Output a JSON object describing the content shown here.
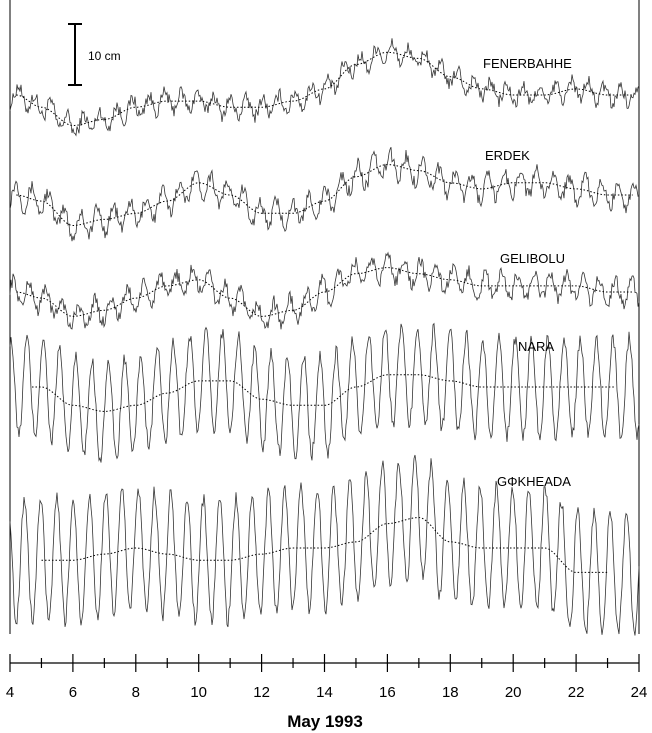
{
  "chart_data": {
    "type": "line",
    "xlabel": "May 1993",
    "xlim": [
      4,
      24
    ],
    "x_ticks": [
      "4",
      "6",
      "8",
      "10",
      "12",
      "14",
      "16",
      "18",
      "20",
      "22",
      "24"
    ],
    "scale_bar_label": "10 cm",
    "scale_bar_cm": 10,
    "series": [
      {
        "name": "FENERBAHHE",
        "x": [
          4.2,
          5,
          6,
          7,
          8,
          9,
          10,
          11,
          12,
          13,
          14,
          15,
          16,
          17,
          18,
          19,
          20,
          21,
          22,
          23,
          23.8
        ],
        "smooth_cm": [
          0,
          -2,
          -5,
          -4,
          -2,
          -1,
          -1,
          -2,
          -2,
          -1,
          1,
          5,
          7,
          6,
          3,
          1,
          0,
          0,
          1,
          0,
          0
        ],
        "tidal_amp_cm": 1.5
      },
      {
        "name": "ERDEK",
        "x": [
          4.2,
          5,
          6,
          7,
          8,
          9,
          10,
          11,
          12,
          13,
          14,
          15,
          16,
          17,
          18,
          19,
          20,
          21,
          22,
          23,
          23.8
        ],
        "smooth_cm": [
          0,
          -1,
          -5,
          -4,
          -3,
          -1,
          2,
          0,
          -3,
          -3,
          -1,
          3,
          5,
          4,
          2,
          1,
          2,
          2,
          1,
          0,
          0
        ],
        "tidal_amp_cm": 2
      },
      {
        "name": "GELIBOLU",
        "x": [
          4.2,
          5,
          6,
          7,
          8,
          9,
          10,
          11,
          12,
          13,
          14,
          15,
          16,
          17,
          18,
          19,
          20,
          21,
          22,
          23,
          23.8
        ],
        "smooth_cm": [
          0,
          -1,
          -4,
          -3,
          -1,
          1,
          2,
          -1,
          -4,
          -3,
          0,
          3,
          4,
          3,
          2,
          1,
          1,
          1,
          1,
          0,
          0
        ],
        "tidal_amp_cm": 2
      },
      {
        "name": "NARA",
        "x": [
          4.7,
          5,
          6,
          7,
          8,
          9,
          10,
          11,
          12,
          13,
          14,
          15,
          16,
          17,
          18,
          19,
          20,
          21,
          22,
          23,
          23.2
        ],
        "smooth_cm": [
          0,
          0,
          -3,
          -4,
          -3,
          -1,
          1,
          1,
          -2,
          -3,
          -3,
          0,
          2,
          2,
          1,
          0,
          0,
          0,
          0,
          0,
          0
        ],
        "tidal_amp_cm": 8
      },
      {
        "name": "GΦKHEADA",
        "x": [
          5,
          6,
          7,
          8,
          9,
          10,
          11,
          12,
          13,
          14,
          15,
          16,
          17,
          18,
          19,
          20,
          21,
          22,
          23
        ],
        "smooth_cm": [
          -2,
          -2,
          -1,
          0,
          -1,
          -2,
          -2,
          -1,
          0,
          0,
          1,
          4,
          5,
          1,
          0,
          0,
          0,
          -4,
          -4
        ],
        "tidal_amp_cm": 10
      }
    ],
    "grid": false,
    "legend": "none"
  }
}
